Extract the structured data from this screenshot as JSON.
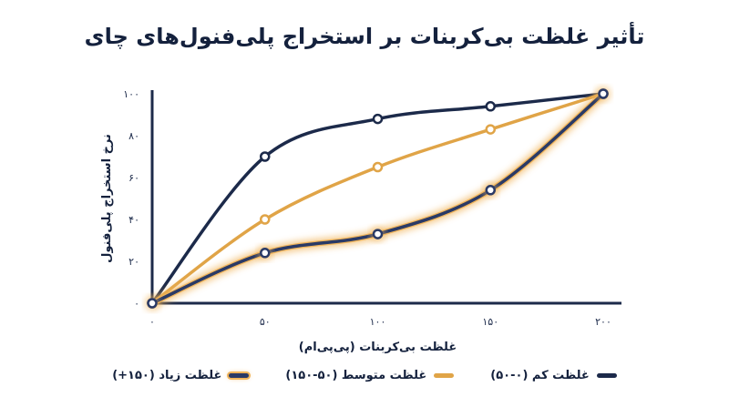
{
  "chart_data": {
    "type": "line",
    "title": "تأثیر غلظت بی‌کربنات بر استخراج پلی‌فنول‌های چای",
    "xlabel": "غلظت بی‌کربنات (پی‌پی‌ام)",
    "ylabel": "نرخ استخراج پلی‌فنول",
    "x": [
      0,
      50,
      100,
      150,
      200
    ],
    "x_tick_labels": [
      "۰",
      "۵۰",
      "۱۰۰",
      "۱۵۰",
      "۲۰۰"
    ],
    "y_ticks": [
      0,
      20,
      40,
      60,
      80,
      100
    ],
    "y_tick_labels": [
      "۰",
      "۲۰",
      "۴۰",
      "۶۰",
      "۸۰",
      "۱۰۰"
    ],
    "xlim": [
      0,
      200
    ],
    "ylim": [
      0,
      100
    ],
    "grid": false,
    "legend_position": "bottom",
    "series": [
      {
        "name": "غلظت کم (۰-۵۰)",
        "color": "#1c2a4a",
        "style": "solid",
        "values": [
          0,
          70,
          88,
          94,
          100
        ]
      },
      {
        "name": "غلظت متوسط (۵۰-۱۵۰)",
        "color": "#e0a447",
        "style": "solid",
        "values": [
          0,
          40,
          65,
          83,
          100
        ]
      },
      {
        "name": "غلظت زیاد (۱۵۰+)",
        "color": "#2a3a66",
        "style": "glow",
        "glow_color": "#f0b45a",
        "values": [
          0,
          24,
          33,
          54,
          100
        ]
      }
    ]
  }
}
